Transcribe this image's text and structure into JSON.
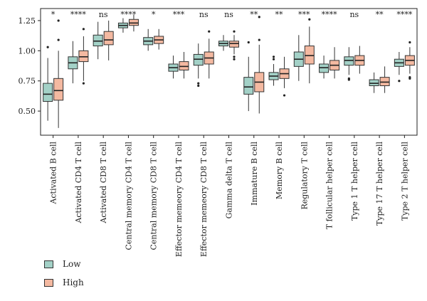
{
  "chart_data": {
    "type": "box",
    "ylim": [
      0.3,
      1.35
    ],
    "yticks": [
      0.5,
      0.75,
      1.0,
      1.25
    ],
    "ytick_labels": [
      "0.50",
      "0.75",
      "1.00",
      "1.25"
    ],
    "grid": false,
    "legend_position": "bottom-left",
    "series": [
      {
        "name": "Low",
        "color": "#a3d1c7"
      },
      {
        "name": "High",
        "color": "#f4b9a1"
      }
    ],
    "categories": [
      {
        "label": "Activated B cell",
        "sig": "*",
        "low": {
          "wlo": 0.42,
          "q1": 0.58,
          "med": 0.64,
          "q3": 0.73,
          "whi": 0.94,
          "outliers": [
            1.03
          ]
        },
        "high": {
          "wlo": 0.36,
          "q1": 0.59,
          "med": 0.67,
          "q3": 0.77,
          "whi": 1.0,
          "outliers": [
            1.09,
            1.25
          ]
        }
      },
      {
        "label": "Activated CD4 T cell",
        "sig": "****",
        "low": {
          "wlo": 0.73,
          "q1": 0.85,
          "med": 0.9,
          "q3": 0.95,
          "whi": 1.08,
          "outliers": []
        },
        "high": {
          "wlo": 0.75,
          "q1": 0.91,
          "med": 0.95,
          "q3": 1.0,
          "whi": 1.12,
          "outliers": [
            0.73,
            1.18
          ]
        }
      },
      {
        "label": "Activated CD8 T cell",
        "sig": "ns",
        "low": {
          "wlo": 0.93,
          "q1": 1.04,
          "med": 1.08,
          "q3": 1.13,
          "whi": 1.24,
          "outliers": []
        },
        "high": {
          "wlo": 0.92,
          "q1": 1.05,
          "med": 1.09,
          "q3": 1.16,
          "whi": 1.25,
          "outliers": []
        }
      },
      {
        "label": "Central memory CD4 T cell",
        "sig": "****",
        "low": {
          "wlo": 1.15,
          "q1": 1.19,
          "med": 1.21,
          "q3": 1.23,
          "whi": 1.27,
          "outliers": []
        },
        "high": {
          "wlo": 1.16,
          "q1": 1.21,
          "med": 1.23,
          "q3": 1.26,
          "whi": 1.3,
          "outliers": []
        }
      },
      {
        "label": "Central memory CD8 T cell",
        "sig": "*",
        "low": {
          "wlo": 1.0,
          "q1": 1.05,
          "med": 1.08,
          "q3": 1.11,
          "whi": 1.18,
          "outliers": []
        },
        "high": {
          "wlo": 1.01,
          "q1": 1.06,
          "med": 1.09,
          "q3": 1.12,
          "whi": 1.18,
          "outliers": []
        }
      },
      {
        "label": "Effector memeory CD4 T cell",
        "sig": "***",
        "low": {
          "wlo": 0.77,
          "q1": 0.83,
          "med": 0.86,
          "q3": 0.89,
          "whi": 0.96,
          "outliers": []
        },
        "high": {
          "wlo": 0.77,
          "q1": 0.84,
          "med": 0.87,
          "q3": 0.91,
          "whi": 0.99,
          "outliers": []
        }
      },
      {
        "label": "Effector memeory CD8 T cell",
        "sig": "ns",
        "low": {
          "wlo": 0.77,
          "q1": 0.88,
          "med": 0.93,
          "q3": 0.97,
          "whi": 1.06,
          "outliers": [
            0.71,
            0.73
          ]
        },
        "high": {
          "wlo": 0.77,
          "q1": 0.89,
          "med": 0.94,
          "q3": 0.99,
          "whi": 1.1,
          "outliers": [
            1.16
          ]
        }
      },
      {
        "label": "Gamma delta T cell",
        "sig": "ns",
        "low": {
          "wlo": 1.0,
          "q1": 1.04,
          "med": 1.06,
          "q3": 1.08,
          "whi": 1.13,
          "outliers": []
        },
        "high": {
          "wlo": 0.97,
          "q1": 1.03,
          "med": 1.06,
          "q3": 1.08,
          "whi": 1.13,
          "outliers": [
            0.93,
            0.95,
            1.16
          ]
        }
      },
      {
        "label": "Immature B cell",
        "sig": "**",
        "low": {
          "wlo": 0.5,
          "q1": 0.64,
          "med": 0.7,
          "q3": 0.78,
          "whi": 0.95,
          "outliers": [
            1.07
          ]
        },
        "high": {
          "wlo": 0.48,
          "q1": 0.66,
          "med": 0.74,
          "q3": 0.82,
          "whi": 1.05,
          "outliers": [
            1.09,
            1.28
          ]
        }
      },
      {
        "label": "Memory B cell",
        "sig": "**",
        "low": {
          "wlo": 0.71,
          "q1": 0.76,
          "med": 0.79,
          "q3": 0.82,
          "whi": 0.89,
          "outliers": [
            0.93,
            0.95
          ]
        },
        "high": {
          "wlo": 0.69,
          "q1": 0.77,
          "med": 0.81,
          "q3": 0.85,
          "whi": 0.95,
          "outliers": [
            0.63
          ]
        }
      },
      {
        "label": "Regulatory T cell",
        "sig": "***",
        "low": {
          "wlo": 0.75,
          "q1": 0.87,
          "med": 0.93,
          "q3": 0.99,
          "whi": 1.13,
          "outliers": []
        },
        "high": {
          "wlo": 0.73,
          "q1": 0.89,
          "med": 0.96,
          "q3": 1.04,
          "whi": 1.2,
          "outliers": [
            1.26
          ]
        }
      },
      {
        "label": "T follicular helper cell",
        "sig": "****",
        "low": {
          "wlo": 0.77,
          "q1": 0.82,
          "med": 0.86,
          "q3": 0.89,
          "whi": 0.96,
          "outliers": []
        },
        "high": {
          "wlo": 0.77,
          "q1": 0.84,
          "med": 0.88,
          "q3": 0.92,
          "whi": 1.03,
          "outliers": []
        }
      },
      {
        "label": "Type 1 T helper cell",
        "sig": "ns",
        "low": {
          "wlo": 0.8,
          "q1": 0.88,
          "med": 0.92,
          "q3": 0.95,
          "whi": 1.03,
          "outliers": [
            0.76,
            0.77
          ]
        },
        "high": {
          "wlo": 0.81,
          "q1": 0.88,
          "med": 0.92,
          "q3": 0.96,
          "whi": 1.04,
          "outliers": []
        }
      },
      {
        "label": "Type 17 T helper cell",
        "sig": "**",
        "low": {
          "wlo": 0.65,
          "q1": 0.71,
          "med": 0.73,
          "q3": 0.76,
          "whi": 0.82,
          "outliers": []
        },
        "high": {
          "wlo": 0.65,
          "q1": 0.71,
          "med": 0.74,
          "q3": 0.78,
          "whi": 0.87,
          "outliers": []
        }
      },
      {
        "label": "Type 2 T helper cell",
        "sig": "****",
        "low": {
          "wlo": 0.8,
          "q1": 0.87,
          "med": 0.9,
          "q3": 0.93,
          "whi": 0.99,
          "outliers": [
            0.75
          ]
        },
        "high": {
          "wlo": 0.81,
          "q1": 0.88,
          "med": 0.92,
          "q3": 0.96,
          "whi": 1.03,
          "outliers": [
            0.77,
            0.78,
            1.07
          ]
        }
      }
    ]
  }
}
